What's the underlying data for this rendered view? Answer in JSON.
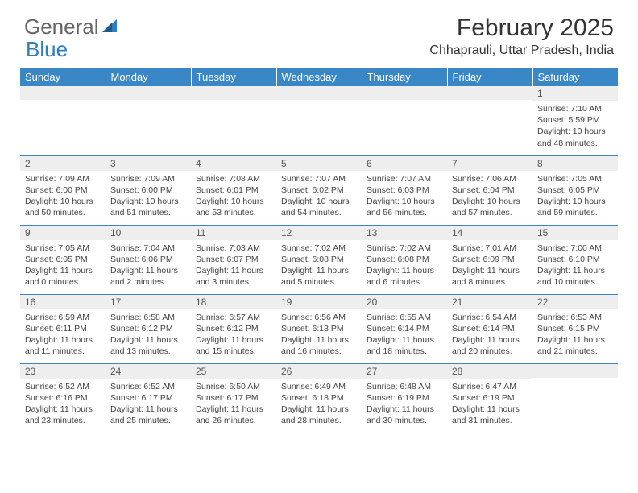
{
  "brand": {
    "text1": "General",
    "text2": "Blue"
  },
  "title": "February 2025",
  "location": "Chhaprauli, Uttar Pradesh, India",
  "header_bg": "#3a87c8",
  "weekdays": [
    "Sunday",
    "Monday",
    "Tuesday",
    "Wednesday",
    "Thursday",
    "Friday",
    "Saturday"
  ],
  "weeks": [
    [
      {
        "n": "",
        "sunrise": "",
        "sunset": "",
        "daylight": ""
      },
      {
        "n": "",
        "sunrise": "",
        "sunset": "",
        "daylight": ""
      },
      {
        "n": "",
        "sunrise": "",
        "sunset": "",
        "daylight": ""
      },
      {
        "n": "",
        "sunrise": "",
        "sunset": "",
        "daylight": ""
      },
      {
        "n": "",
        "sunrise": "",
        "sunset": "",
        "daylight": ""
      },
      {
        "n": "",
        "sunrise": "",
        "sunset": "",
        "daylight": ""
      },
      {
        "n": "1",
        "sunrise": "Sunrise: 7:10 AM",
        "sunset": "Sunset: 5:59 PM",
        "daylight": "Daylight: 10 hours and 48 minutes."
      }
    ],
    [
      {
        "n": "2",
        "sunrise": "Sunrise: 7:09 AM",
        "sunset": "Sunset: 6:00 PM",
        "daylight": "Daylight: 10 hours and 50 minutes."
      },
      {
        "n": "3",
        "sunrise": "Sunrise: 7:09 AM",
        "sunset": "Sunset: 6:00 PM",
        "daylight": "Daylight: 10 hours and 51 minutes."
      },
      {
        "n": "4",
        "sunrise": "Sunrise: 7:08 AM",
        "sunset": "Sunset: 6:01 PM",
        "daylight": "Daylight: 10 hours and 53 minutes."
      },
      {
        "n": "5",
        "sunrise": "Sunrise: 7:07 AM",
        "sunset": "Sunset: 6:02 PM",
        "daylight": "Daylight: 10 hours and 54 minutes."
      },
      {
        "n": "6",
        "sunrise": "Sunrise: 7:07 AM",
        "sunset": "Sunset: 6:03 PM",
        "daylight": "Daylight: 10 hours and 56 minutes."
      },
      {
        "n": "7",
        "sunrise": "Sunrise: 7:06 AM",
        "sunset": "Sunset: 6:04 PM",
        "daylight": "Daylight: 10 hours and 57 minutes."
      },
      {
        "n": "8",
        "sunrise": "Sunrise: 7:05 AM",
        "sunset": "Sunset: 6:05 PM",
        "daylight": "Daylight: 10 hours and 59 minutes."
      }
    ],
    [
      {
        "n": "9",
        "sunrise": "Sunrise: 7:05 AM",
        "sunset": "Sunset: 6:05 PM",
        "daylight": "Daylight: 11 hours and 0 minutes."
      },
      {
        "n": "10",
        "sunrise": "Sunrise: 7:04 AM",
        "sunset": "Sunset: 6:06 PM",
        "daylight": "Daylight: 11 hours and 2 minutes."
      },
      {
        "n": "11",
        "sunrise": "Sunrise: 7:03 AM",
        "sunset": "Sunset: 6:07 PM",
        "daylight": "Daylight: 11 hours and 3 minutes."
      },
      {
        "n": "12",
        "sunrise": "Sunrise: 7:02 AM",
        "sunset": "Sunset: 6:08 PM",
        "daylight": "Daylight: 11 hours and 5 minutes."
      },
      {
        "n": "13",
        "sunrise": "Sunrise: 7:02 AM",
        "sunset": "Sunset: 6:08 PM",
        "daylight": "Daylight: 11 hours and 6 minutes."
      },
      {
        "n": "14",
        "sunrise": "Sunrise: 7:01 AM",
        "sunset": "Sunset: 6:09 PM",
        "daylight": "Daylight: 11 hours and 8 minutes."
      },
      {
        "n": "15",
        "sunrise": "Sunrise: 7:00 AM",
        "sunset": "Sunset: 6:10 PM",
        "daylight": "Daylight: 11 hours and 10 minutes."
      }
    ],
    [
      {
        "n": "16",
        "sunrise": "Sunrise: 6:59 AM",
        "sunset": "Sunset: 6:11 PM",
        "daylight": "Daylight: 11 hours and 11 minutes."
      },
      {
        "n": "17",
        "sunrise": "Sunrise: 6:58 AM",
        "sunset": "Sunset: 6:12 PM",
        "daylight": "Daylight: 11 hours and 13 minutes."
      },
      {
        "n": "18",
        "sunrise": "Sunrise: 6:57 AM",
        "sunset": "Sunset: 6:12 PM",
        "daylight": "Daylight: 11 hours and 15 minutes."
      },
      {
        "n": "19",
        "sunrise": "Sunrise: 6:56 AM",
        "sunset": "Sunset: 6:13 PM",
        "daylight": "Daylight: 11 hours and 16 minutes."
      },
      {
        "n": "20",
        "sunrise": "Sunrise: 6:55 AM",
        "sunset": "Sunset: 6:14 PM",
        "daylight": "Daylight: 11 hours and 18 minutes."
      },
      {
        "n": "21",
        "sunrise": "Sunrise: 6:54 AM",
        "sunset": "Sunset: 6:14 PM",
        "daylight": "Daylight: 11 hours and 20 minutes."
      },
      {
        "n": "22",
        "sunrise": "Sunrise: 6:53 AM",
        "sunset": "Sunset: 6:15 PM",
        "daylight": "Daylight: 11 hours and 21 minutes."
      }
    ],
    [
      {
        "n": "23",
        "sunrise": "Sunrise: 6:52 AM",
        "sunset": "Sunset: 6:16 PM",
        "daylight": "Daylight: 11 hours and 23 minutes."
      },
      {
        "n": "24",
        "sunrise": "Sunrise: 6:52 AM",
        "sunset": "Sunset: 6:17 PM",
        "daylight": "Daylight: 11 hours and 25 minutes."
      },
      {
        "n": "25",
        "sunrise": "Sunrise: 6:50 AM",
        "sunset": "Sunset: 6:17 PM",
        "daylight": "Daylight: 11 hours and 26 minutes."
      },
      {
        "n": "26",
        "sunrise": "Sunrise: 6:49 AM",
        "sunset": "Sunset: 6:18 PM",
        "daylight": "Daylight: 11 hours and 28 minutes."
      },
      {
        "n": "27",
        "sunrise": "Sunrise: 6:48 AM",
        "sunset": "Sunset: 6:19 PM",
        "daylight": "Daylight: 11 hours and 30 minutes."
      },
      {
        "n": "28",
        "sunrise": "Sunrise: 6:47 AM",
        "sunset": "Sunset: 6:19 PM",
        "daylight": "Daylight: 11 hours and 31 minutes."
      },
      {
        "n": "",
        "sunrise": "",
        "sunset": "",
        "daylight": ""
      }
    ]
  ]
}
